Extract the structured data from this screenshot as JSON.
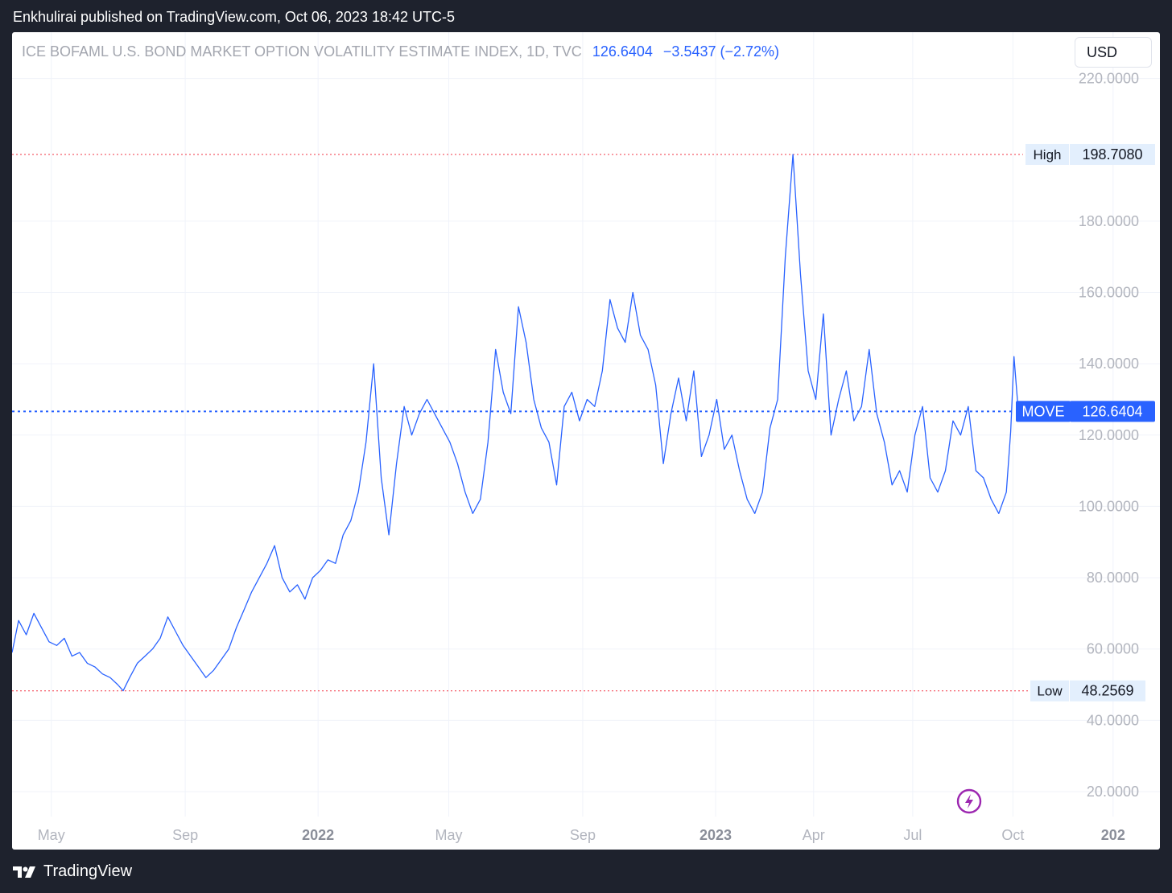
{
  "header": {
    "published_text": "Enkhulirai published on TradingView.com, Oct 06, 2023 18:42 UTC-5"
  },
  "legend": {
    "symbol": "ICE BOFAML U.S. BOND MARKET OPTION VOLATILITY ESTIMATE INDEX, 1D, TVC",
    "last": "126.6404",
    "change": "−3.5437 (−2.72%)"
  },
  "currency": "USD",
  "markers": {
    "high_label": "High",
    "high_value": "198.7080",
    "low_label": "Low",
    "low_value": "48.2569",
    "last_label": "MOVE",
    "last_value": "126.6404"
  },
  "footer": {
    "brand": "TradingView"
  },
  "colors": {
    "line": "#2962ff",
    "hilo": "#f23645",
    "axis_text": "#b2b5be",
    "badge_bg": "#e3effd"
  },
  "icons": {
    "flash": "lightning-circle-icon",
    "logo": "tradingview-logo-icon"
  },
  "chart_data": {
    "type": "line",
    "title": "ICE BOFAML U.S. BOND MARKET OPTION VOLATILITY ESTIMATE INDEX, 1D, TVC",
    "series": [
      {
        "name": "MOVE",
        "points": [
          [
            "2021-03-26",
            59
          ],
          [
            "2021-04-01",
            68
          ],
          [
            "2021-04-08",
            64
          ],
          [
            "2021-04-15",
            70
          ],
          [
            "2021-04-22",
            66
          ],
          [
            "2021-04-29",
            62
          ],
          [
            "2021-05-06",
            61
          ],
          [
            "2021-05-13",
            63
          ],
          [
            "2021-05-20",
            58
          ],
          [
            "2021-05-27",
            59
          ],
          [
            "2021-06-03",
            56
          ],
          [
            "2021-06-10",
            55
          ],
          [
            "2021-06-17",
            53
          ],
          [
            "2021-06-24",
            52
          ],
          [
            "2021-07-01",
            50
          ],
          [
            "2021-07-06",
            48.3
          ],
          [
            "2021-07-12",
            52
          ],
          [
            "2021-07-19",
            56
          ],
          [
            "2021-07-26",
            58
          ],
          [
            "2021-08-02",
            60
          ],
          [
            "2021-08-09",
            63
          ],
          [
            "2021-08-16",
            69
          ],
          [
            "2021-08-23",
            65
          ],
          [
            "2021-08-30",
            61
          ],
          [
            "2021-09-06",
            58
          ],
          [
            "2021-09-13",
            55
          ],
          [
            "2021-09-20",
            52
          ],
          [
            "2021-09-27",
            54
          ],
          [
            "2021-10-04",
            57
          ],
          [
            "2021-10-11",
            60
          ],
          [
            "2021-10-18",
            66
          ],
          [
            "2021-10-25",
            71
          ],
          [
            "2021-11-01",
            76
          ],
          [
            "2021-11-08",
            80
          ],
          [
            "2021-11-15",
            84
          ],
          [
            "2021-11-22",
            89
          ],
          [
            "2021-11-29",
            80
          ],
          [
            "2021-12-06",
            76
          ],
          [
            "2021-12-13",
            78
          ],
          [
            "2021-12-20",
            74
          ],
          [
            "2021-12-27",
            80
          ],
          [
            "2022-01-03",
            82
          ],
          [
            "2022-01-10",
            85
          ],
          [
            "2022-01-17",
            84
          ],
          [
            "2022-01-24",
            92
          ],
          [
            "2022-01-31",
            96
          ],
          [
            "2022-02-07",
            104
          ],
          [
            "2022-02-14",
            118
          ],
          [
            "2022-02-21",
            140
          ],
          [
            "2022-02-28",
            108
          ],
          [
            "2022-03-07",
            92
          ],
          [
            "2022-03-14",
            112
          ],
          [
            "2022-03-21",
            128
          ],
          [
            "2022-03-28",
            120
          ],
          [
            "2022-04-04",
            126
          ],
          [
            "2022-04-11",
            130
          ],
          [
            "2022-04-18",
            126
          ],
          [
            "2022-04-25",
            122
          ],
          [
            "2022-05-02",
            118
          ],
          [
            "2022-05-09",
            112
          ],
          [
            "2022-05-16",
            104
          ],
          [
            "2022-05-23",
            98
          ],
          [
            "2022-05-30",
            102
          ],
          [
            "2022-06-06",
            118
          ],
          [
            "2022-06-13",
            144
          ],
          [
            "2022-06-20",
            132
          ],
          [
            "2022-06-27",
            126
          ],
          [
            "2022-07-04",
            156
          ],
          [
            "2022-07-11",
            146
          ],
          [
            "2022-07-18",
            130
          ],
          [
            "2022-07-25",
            122
          ],
          [
            "2022-08-01",
            118
          ],
          [
            "2022-08-08",
            106
          ],
          [
            "2022-08-15",
            128
          ],
          [
            "2022-08-22",
            132
          ],
          [
            "2022-08-29",
            124
          ],
          [
            "2022-09-05",
            130
          ],
          [
            "2022-09-12",
            128
          ],
          [
            "2022-09-19",
            138
          ],
          [
            "2022-09-26",
            158
          ],
          [
            "2022-10-03",
            150
          ],
          [
            "2022-10-10",
            146
          ],
          [
            "2022-10-17",
            160
          ],
          [
            "2022-10-24",
            148
          ],
          [
            "2022-10-31",
            144
          ],
          [
            "2022-11-07",
            134
          ],
          [
            "2022-11-14",
            112
          ],
          [
            "2022-11-21",
            126
          ],
          [
            "2022-11-28",
            136
          ],
          [
            "2022-12-05",
            124
          ],
          [
            "2022-12-12",
            138
          ],
          [
            "2022-12-19",
            114
          ],
          [
            "2022-12-26",
            120
          ],
          [
            "2023-01-02",
            130
          ],
          [
            "2023-01-09",
            116
          ],
          [
            "2023-01-16",
            120
          ],
          [
            "2023-01-23",
            110
          ],
          [
            "2023-01-30",
            102
          ],
          [
            "2023-02-06",
            98
          ],
          [
            "2023-02-13",
            104
          ],
          [
            "2023-02-20",
            122
          ],
          [
            "2023-02-27",
            130
          ],
          [
            "2023-03-06",
            170
          ],
          [
            "2023-03-13",
            198.7
          ],
          [
            "2023-03-20",
            165
          ],
          [
            "2023-03-27",
            138
          ],
          [
            "2023-04-03",
            130
          ],
          [
            "2023-04-10",
            154
          ],
          [
            "2023-04-17",
            120
          ],
          [
            "2023-04-24",
            130
          ],
          [
            "2023-05-01",
            138
          ],
          [
            "2023-05-08",
            124
          ],
          [
            "2023-05-15",
            128
          ],
          [
            "2023-05-22",
            144
          ],
          [
            "2023-05-29",
            126
          ],
          [
            "2023-06-05",
            118
          ],
          [
            "2023-06-12",
            106
          ],
          [
            "2023-06-19",
            110
          ],
          [
            "2023-06-26",
            104
          ],
          [
            "2023-07-03",
            120
          ],
          [
            "2023-07-10",
            128
          ],
          [
            "2023-07-17",
            108
          ],
          [
            "2023-07-24",
            104
          ],
          [
            "2023-07-31",
            110
          ],
          [
            "2023-08-07",
            124
          ],
          [
            "2023-08-14",
            120
          ],
          [
            "2023-08-21",
            128
          ],
          [
            "2023-08-28",
            110
          ],
          [
            "2023-09-04",
            108
          ],
          [
            "2023-09-11",
            102
          ],
          [
            "2023-09-18",
            98
          ],
          [
            "2023-09-25",
            104
          ],
          [
            "2023-09-29",
            121
          ],
          [
            "2023-10-02",
            142
          ],
          [
            "2023-10-06",
            126.64
          ]
        ]
      }
    ],
    "y_ticks": [
      "220.0000",
      "180.0000",
      "160.0000",
      "140.0000",
      "120.0000",
      "100.0000",
      "80.0000",
      "60.0000",
      "40.0000",
      "20.0000"
    ],
    "y_tick_values": [
      220,
      180,
      160,
      140,
      120,
      100,
      80,
      60,
      40,
      20
    ],
    "x_ticks": [
      {
        "label": "May",
        "date": "2021-05-01",
        "bold": false
      },
      {
        "label": "Sep",
        "date": "2021-09-01",
        "bold": false
      },
      {
        "label": "2022",
        "date": "2022-01-01",
        "bold": true
      },
      {
        "label": "May",
        "date": "2022-05-01",
        "bold": false
      },
      {
        "label": "Sep",
        "date": "2022-09-01",
        "bold": false
      },
      {
        "label": "2023",
        "date": "2023-01-01",
        "bold": true
      },
      {
        "label": "Apr",
        "date": "2023-04-01",
        "bold": false
      },
      {
        "label": "Jul",
        "date": "2023-07-01",
        "bold": false
      },
      {
        "label": "Oct",
        "date": "2023-10-01",
        "bold": false
      },
      {
        "label": "202",
        "date": "2024-01-01",
        "bold": true
      }
    ],
    "high": 198.708,
    "low": 48.2569,
    "last": 126.6404,
    "ylim": [
      13,
      233
    ],
    "xlim": [
      "2021-03-26",
      "2024-02-13"
    ],
    "grid": true,
    "legend_position": "top-left"
  }
}
